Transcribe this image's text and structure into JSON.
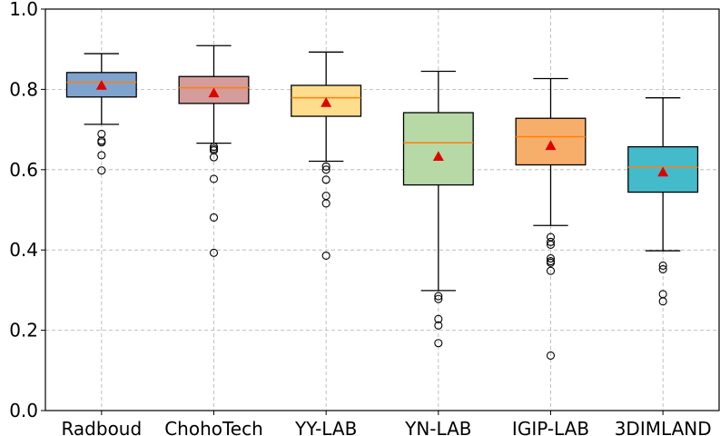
{
  "chart_data": {
    "type": "boxplot",
    "categories": [
      "Radboud",
      "ChohoTech",
      "YY-LAB",
      "YN-LAB",
      "IGIP-LAB",
      "3DIMLAND"
    ],
    "ylim": [
      0.0,
      1.0
    ],
    "yticks": [
      "0.0",
      "0.2",
      "0.4",
      "0.6",
      "0.8",
      "1.0"
    ],
    "grid": true,
    "mean_marker": "red triangle",
    "median_color": "#ff7f0e",
    "boxes": [
      {
        "name": "Radboud",
        "color": "#7fa3cf",
        "whislo": 0.713,
        "q1": 0.781,
        "med": 0.818,
        "q3": 0.842,
        "whishi": 0.889,
        "mean": 0.81,
        "fliers": [
          0.689,
          0.672,
          0.668,
          0.636,
          0.598
        ]
      },
      {
        "name": "ChohoTech",
        "color": "#d49c9a",
        "whislo": 0.666,
        "q1": 0.765,
        "med": 0.804,
        "q3": 0.832,
        "whishi": 0.909,
        "mean": 0.791,
        "fliers": [
          0.657,
          0.652,
          0.648,
          0.631,
          0.577,
          0.481,
          0.393
        ]
      },
      {
        "name": "YY-LAB",
        "color": "#fedd8d",
        "whislo": 0.621,
        "q1": 0.733,
        "med": 0.779,
        "q3": 0.81,
        "whishi": 0.893,
        "mean": 0.767,
        "fliers": [
          0.608,
          0.6,
          0.575,
          0.535,
          0.516,
          0.386
        ]
      },
      {
        "name": "YN-LAB",
        "color": "#b7d9a6",
        "whislo": 0.299,
        "q1": 0.562,
        "med": 0.667,
        "q3": 0.742,
        "whishi": 0.845,
        "mean": 0.633,
        "fliers": [
          0.285,
          0.278,
          0.228,
          0.212,
          0.168
        ]
      },
      {
        "name": "IGIP-LAB",
        "color": "#f8ae6b",
        "whislo": 0.461,
        "q1": 0.612,
        "med": 0.682,
        "q3": 0.728,
        "whishi": 0.827,
        "mean": 0.66,
        "fliers": [
          0.432,
          0.42,
          0.413,
          0.379,
          0.372,
          0.368,
          0.348,
          0.137
        ]
      },
      {
        "name": "3DIMLAND",
        "color": "#44bbcb",
        "whislo": 0.398,
        "q1": 0.544,
        "med": 0.606,
        "q3": 0.657,
        "whishi": 0.779,
        "mean": 0.594,
        "fliers": [
          0.361,
          0.352,
          0.29,
          0.272
        ]
      }
    ]
  }
}
